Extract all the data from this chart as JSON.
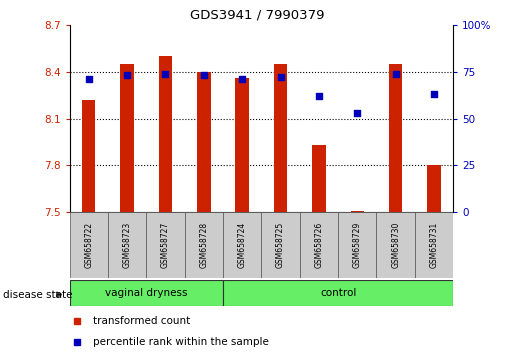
{
  "title": "GDS3941 / 7990379",
  "samples": [
    "GSM658722",
    "GSM658723",
    "GSM658727",
    "GSM658728",
    "GSM658724",
    "GSM658725",
    "GSM658726",
    "GSM658729",
    "GSM658730",
    "GSM658731"
  ],
  "red_values": [
    8.22,
    8.45,
    8.5,
    8.4,
    8.36,
    8.45,
    7.93,
    7.51,
    8.45,
    7.8
  ],
  "blue_values": [
    71,
    73,
    74,
    73,
    71,
    72,
    62,
    53,
    74,
    63
  ],
  "ylim_left": [
    7.5,
    8.7
  ],
  "ylim_right": [
    0,
    100
  ],
  "yticks_left": [
    7.5,
    7.8,
    8.1,
    8.4,
    8.7
  ],
  "yticks_right": [
    0,
    25,
    50,
    75,
    100
  ],
  "ytick_labels_left": [
    "7.5",
    "7.8",
    "8.1",
    "8.4",
    "8.7"
  ],
  "ytick_labels_right": [
    "0",
    "25",
    "50",
    "75",
    "100%"
  ],
  "bar_color": "#cc2200",
  "dot_color": "#0000bb",
  "bar_base": 7.5,
  "bar_width": 0.35,
  "groups": [
    {
      "label": "vaginal dryness",
      "start": 0,
      "end": 3,
      "color": "#66ee66"
    },
    {
      "label": "control",
      "start": 4,
      "end": 9,
      "color": "#66ee66"
    }
  ],
  "group_label_prefix": "disease state",
  "legend_items": [
    {
      "label": "transformed count",
      "color": "#cc2200"
    },
    {
      "label": "percentile rank within the sample",
      "color": "#0000bb"
    }
  ],
  "tick_color_left": "#cc2200",
  "tick_color_right": "#0000bb",
  "sample_box_color": "#cccccc",
  "grid_lines": [
    7.8,
    8.1,
    8.4
  ]
}
